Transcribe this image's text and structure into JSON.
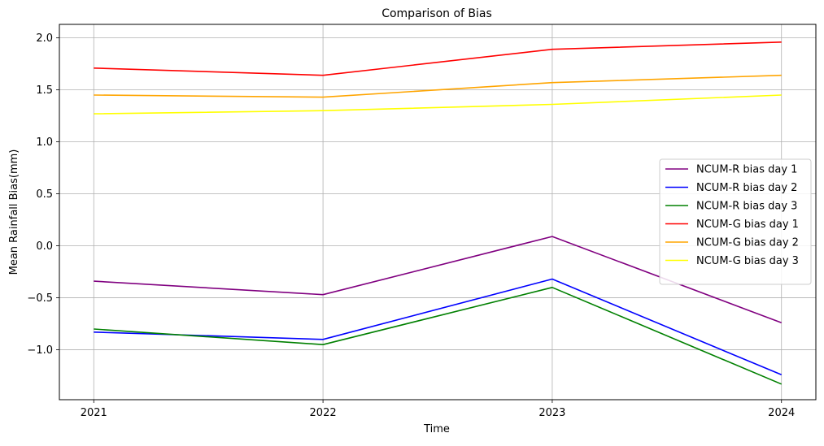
{
  "chart_data": {
    "type": "line",
    "title": "Comparison of Bias",
    "xlabel": "Time",
    "ylabel": "Mean Rainfall Bias(mm)",
    "x": [
      2021,
      2022,
      2023,
      2024
    ],
    "x_tick_labels": [
      "2021",
      "2022",
      "2023",
      "2024"
    ],
    "ylim": [
      -1.48,
      2.13
    ],
    "y_ticks": [
      -1.0,
      -0.5,
      0.0,
      0.5,
      1.0,
      1.5,
      2.0
    ],
    "y_tick_labels": [
      "−1.0",
      "−0.5",
      "0.0",
      "0.5",
      "1.0",
      "1.5",
      "2.0"
    ],
    "grid": true,
    "legend_position": "center-right",
    "series": [
      {
        "name": "NCUM-R bias day 1",
        "color": "#800080",
        "values": [
          -0.34,
          -0.47,
          0.09,
          -0.74
        ]
      },
      {
        "name": "NCUM-R bias day 2",
        "color": "#0000ff",
        "values": [
          -0.83,
          -0.9,
          -0.32,
          -1.24
        ]
      },
      {
        "name": "NCUM-R bias day 3",
        "color": "#008000",
        "values": [
          -0.8,
          -0.95,
          -0.4,
          -1.33
        ]
      },
      {
        "name": "NCUM-G bias day 1",
        "color": "#ff0000",
        "values": [
          1.71,
          1.64,
          1.89,
          1.96
        ]
      },
      {
        "name": "NCUM-G bias day 2",
        "color": "#ffa500",
        "values": [
          1.45,
          1.43,
          1.57,
          1.64
        ]
      },
      {
        "name": "NCUM-G bias day 3",
        "color": "#ffff00",
        "values": [
          1.27,
          1.3,
          1.36,
          1.45
        ]
      }
    ]
  }
}
